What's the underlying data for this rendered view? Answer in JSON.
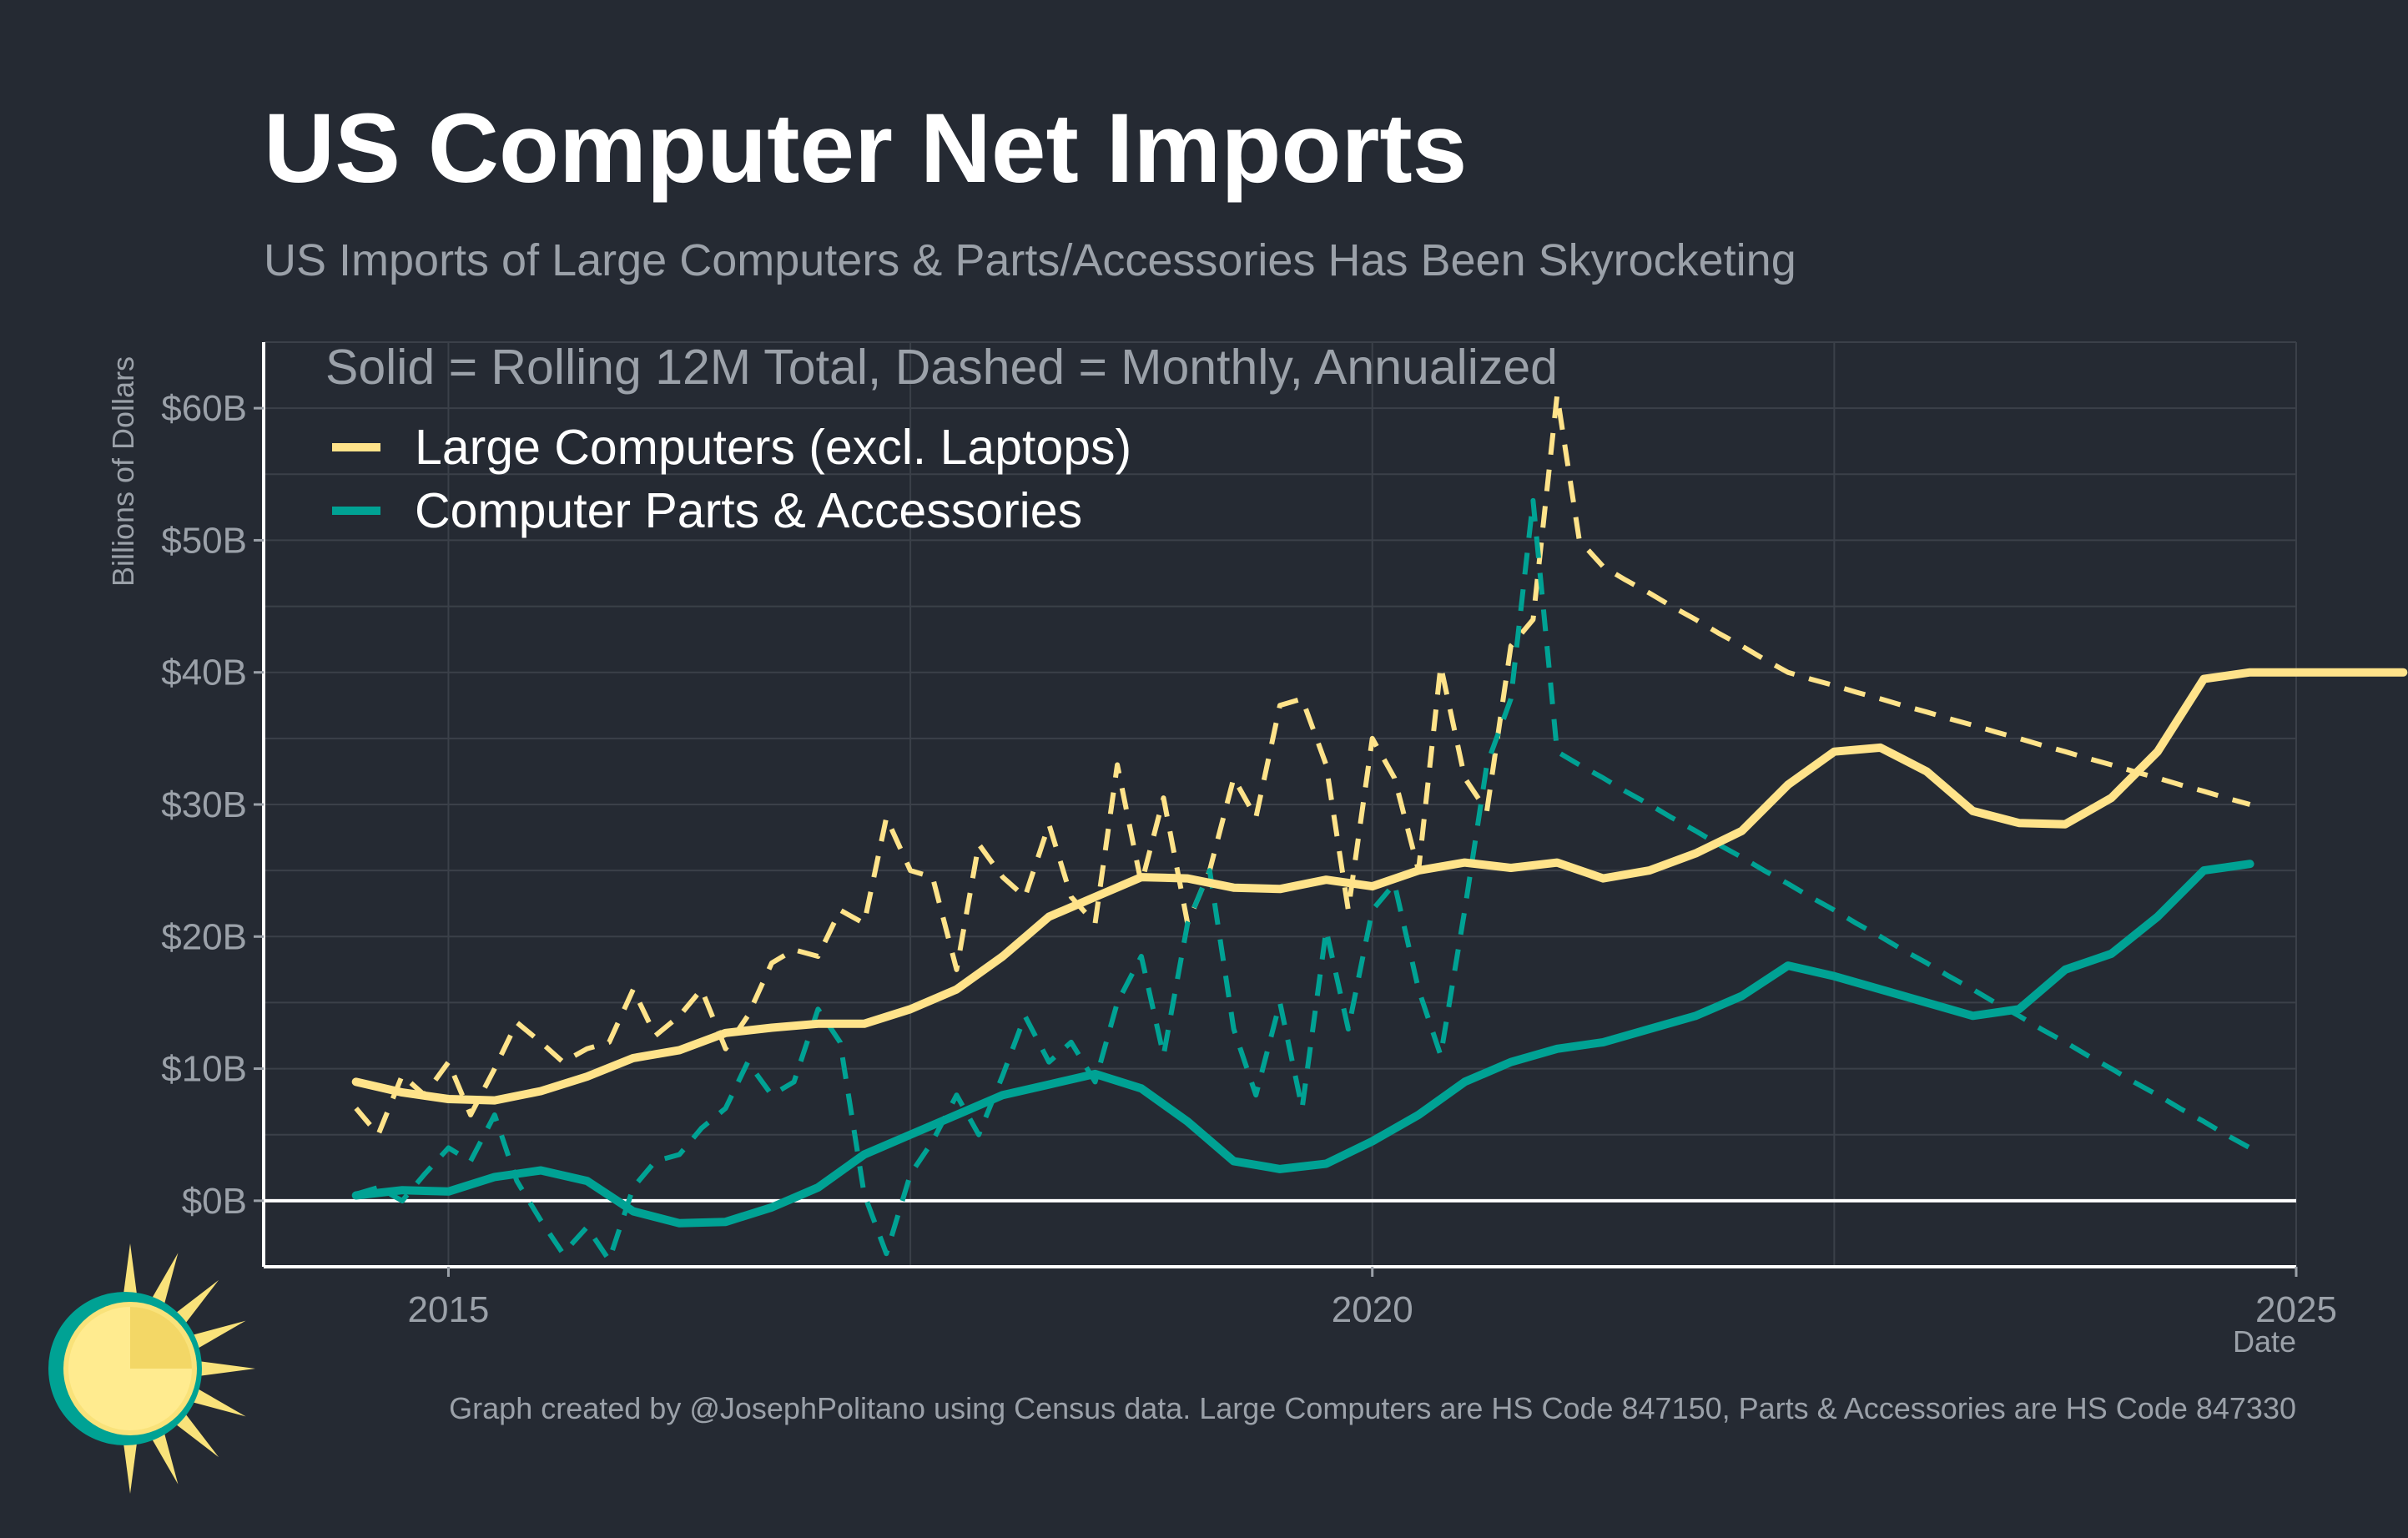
{
  "title": "US Computer Net Imports",
  "subtitle": "US Imports of Large Computers & Parts/Accessories Has Been Skyrocketing",
  "caption": "Graph created by @JosephPolitano using Census data. Large Computers are HS Code 847150, Parts & Accessories are HS Code 847330",
  "colors": {
    "background": "#252a33",
    "grid": "#3b4049",
    "axis": "#ffffff",
    "muted_text": "#9ba1a9",
    "large_computers": "#ffe38a",
    "parts_accessories": "#00a294",
    "logo_sun": "#f9e27a",
    "logo_ring": "#00a294"
  },
  "logo": {
    "icon": "sun-logo-icon"
  },
  "chart_data": {
    "type": "line",
    "note": "Solid = Rolling 12M Total, Dashed = Monthly, Annualized",
    "xlabel": "Date",
    "ylabel": "Billions of Dollars",
    "xlim": [
      2014.0,
      2025.0
    ],
    "ylim": [
      -5,
      65
    ],
    "x_ticks": [
      2015,
      2020,
      2025
    ],
    "x_tick_labels": [
      "2015",
      "2020",
      "2025"
    ],
    "y_ticks": [
      0,
      10,
      20,
      30,
      40,
      50,
      60
    ],
    "y_tick_labels": [
      "$0B",
      "$10B",
      "$20B",
      "$30B",
      "$40B",
      "$50B",
      "$60B"
    ],
    "grid": true,
    "zero_line": true,
    "legend": {
      "placement": "top-left"
    },
    "series": [
      {
        "name": "Large Computers (excl. Laptops)",
        "color": "#ffe38a",
        "style": "solid",
        "x": [
          2014.5,
          2014.75,
          2015.0,
          2015.25,
          2015.5,
          2015.75,
          2016.0,
          2016.25,
          2016.5,
          2016.75,
          2017.0,
          2017.25,
          2017.5,
          2017.75,
          2018.0,
          2018.25,
          2018.5,
          2018.75,
          2019.0,
          2019.25,
          2019.5,
          2019.75,
          2020.0,
          2020.25,
          2020.5,
          2020.75,
          2021.0,
          2021.25,
          2021.5,
          2021.75,
          2022.0,
          2022.25,
          2022.5,
          2022.75,
          2023.0,
          2023.25,
          2023.5,
          2023.75,
          2024.0,
          2024.25,
          2024.5,
          2024.75,
          2025.0,
          2025.25,
          2025.5,
          2025.58
        ],
        "values": [
          9.0,
          8.2,
          7.7,
          7.6,
          8.3,
          9.4,
          10.8,
          11.4,
          12.7,
          13.1,
          13.4,
          13.4,
          14.5,
          16.0,
          18.5,
          21.5,
          23.0,
          24.5,
          24.4,
          23.7,
          23.6,
          24.3,
          23.8,
          25.0,
          25.6,
          25.2,
          25.6,
          24.4,
          25.0,
          26.3,
          28.0,
          31.5,
          34.0,
          34.3,
          32.5,
          29.5,
          28.6,
          28.5,
          30.5,
          34.0,
          39.5,
          40.0,
          40.0,
          40.0,
          40.0,
          40.0
        ]
      },
      {
        "name": "Computer Parts & Accessories",
        "color": "#00a294",
        "style": "solid",
        "x": [
          2014.5,
          2014.75,
          2015.0,
          2015.25,
          2015.5,
          2015.75,
          2016.0,
          2016.25,
          2016.5,
          2016.75,
          2017.0,
          2017.25,
          2017.5,
          2017.75,
          2018.0,
          2018.25,
          2018.5,
          2018.75,
          2019.0,
          2019.25,
          2019.5,
          2019.75,
          2020.0,
          2020.25,
          2020.5,
          2020.75,
          2021.0,
          2021.25,
          2021.5,
          2021.75,
          2022.0,
          2022.25,
          2022.5,
          2022.75,
          2023.0,
          2023.25,
          2023.5,
          2023.75,
          2024.0,
          2024.25,
          2024.5,
          2024.75
        ],
        "values": [
          0.4,
          0.8,
          0.7,
          1.8,
          2.3,
          1.5,
          -0.8,
          -1.7,
          -1.6,
          -0.5,
          1.0,
          3.5,
          5.0,
          6.5,
          8.0,
          8.8,
          9.6,
          8.5,
          6.0,
          3.0,
          2.4,
          2.8,
          4.5,
          6.5,
          9.0,
          10.5,
          11.5,
          12.0,
          13.0,
          14.0,
          15.5,
          17.8,
          17.0,
          16.0,
          15.0,
          14.0,
          14.5,
          17.5,
          18.7,
          21.5,
          25.0,
          25.5
        ]
      }
    ],
    "series_monthly": [
      {
        "name": "Large Computers (excl. Laptops)",
        "style": "dashed",
        "x": [
          2014.5,
          2014.62,
          2014.75,
          2014.87,
          2015.0,
          2015.12,
          2015.25,
          2015.37,
          2015.5,
          2015.62,
          2015.75,
          2015.87,
          2016.0,
          2016.12,
          2016.25,
          2016.37,
          2016.5,
          2016.62,
          2016.75,
          2016.87,
          2017.0,
          2017.12,
          2017.25,
          2017.37,
          2017.5,
          2017.62,
          2017.75,
          2017.87,
          2018.0,
          2018.12,
          2018.25,
          2018.37,
          2018.5,
          2018.62,
          2018.75,
          2018.87,
          2019.0,
          2019.12,
          2019.25,
          2019.37,
          2019.5,
          2019.62,
          2019.75,
          2019.87,
          2020.0,
          2020.12,
          2020.25,
          2020.37,
          2020.5,
          2020.62,
          2020.75,
          2020.87,
          2021.0,
          2021.12,
          2021.25,
          2021.37,
          2021.5,
          2021.62,
          2021.75,
          2021.87,
          2022.0,
          2022.12,
          2022.25,
          2022.37,
          2022.5,
          2022.62,
          2022.75,
          2022.87,
          2023.0,
          2023.12,
          2023.25,
          2023.37,
          2023.5,
          2023.62,
          2023.75,
          2023.87,
          2024.0,
          2024.12,
          2024.25,
          2024.37,
          2024.5,
          2024.62,
          2024.75
        ],
        "values": [
          7.0,
          5.0,
          9.5,
          8.0,
          10.5,
          6.5,
          10.0,
          13.5,
          12.0,
          10.5,
          11.5,
          12.0,
          16.0,
          12.5,
          14.0,
          16.0,
          11.5,
          14.0,
          18.0,
          19.0,
          18.5,
          22.0,
          21.0,
          29.0,
          25.0,
          24.5,
          17.5,
          27.0,
          24.5,
          23.0,
          28.5,
          23.0,
          21.0,
          33.0,
          24.0,
          30.5,
          21.0,
          25.0,
          32.0,
          29.0,
          37.5,
          38.0,
          33.0,
          22.0,
          35.0,
          32.0,
          25.0,
          40.5,
          32.0,
          29.5,
          42.0,
          44.0,
          61.0,
          50.0,
          48.0,
          47.0,
          46.0,
          45.0,
          44.0,
          43.0,
          42.0,
          41.0,
          40.0,
          39.5,
          39.0,
          38.5,
          38.0,
          37.5,
          37.0,
          36.5,
          36.0,
          35.5,
          35.0,
          34.5,
          34.0,
          33.5,
          33.0,
          32.5,
          32.0,
          31.5,
          31.0,
          30.5,
          30.0
        ]
      },
      {
        "name": "Computer Parts & Accessories",
        "style": "dashed",
        "x": [
          2014.5,
          2014.62,
          2014.75,
          2014.87,
          2015.0,
          2015.12,
          2015.25,
          2015.37,
          2015.5,
          2015.62,
          2015.75,
          2015.87,
          2016.0,
          2016.12,
          2016.25,
          2016.37,
          2016.5,
          2016.62,
          2016.75,
          2016.87,
          2017.0,
          2017.12,
          2017.25,
          2017.37,
          2017.5,
          2017.62,
          2017.75,
          2017.87,
          2018.0,
          2018.12,
          2018.25,
          2018.37,
          2018.5,
          2018.62,
          2018.75,
          2018.87,
          2019.0,
          2019.12,
          2019.25,
          2019.37,
          2019.5,
          2019.62,
          2019.75,
          2019.87,
          2020.0,
          2020.12,
          2020.25,
          2020.37,
          2020.5,
          2020.62,
          2020.75,
          2020.87,
          2021.0,
          2021.12,
          2021.25,
          2021.37,
          2021.5,
          2021.62,
          2021.75,
          2021.87,
          2022.0,
          2022.12,
          2022.25,
          2022.37,
          2022.5,
          2022.62,
          2022.75,
          2022.87,
          2023.0,
          2023.12,
          2023.25,
          2023.37,
          2023.5,
          2023.62,
          2023.75,
          2023.87,
          2024.0,
          2024.12,
          2024.25,
          2024.37,
          2024.5,
          2024.62,
          2024.75
        ],
        "values": [
          0.5,
          1.0,
          0.0,
          2.0,
          4.0,
          3.0,
          6.5,
          1.5,
          -1.5,
          -4.0,
          -2.0,
          -4.5,
          1.0,
          3.0,
          3.5,
          5.5,
          7.0,
          10.5,
          8.0,
          9.0,
          14.5,
          12.0,
          0.5,
          -4.0,
          2.0,
          4.5,
          8.0,
          5.0,
          9.5,
          14.0,
          10.5,
          12.0,
          9.0,
          15.0,
          18.5,
          11.0,
          21.0,
          25.0,
          13.0,
          8.0,
          15.0,
          7.0,
          20.5,
          13.0,
          22.0,
          24.0,
          16.0,
          11.0,
          22.0,
          33.0,
          38.0,
          53.0,
          34.0,
          33.0,
          32.0,
          31.0,
          30.0,
          29.0,
          28.0,
          27.0,
          26.0,
          25.0,
          24.0,
          23.0,
          22.0,
          21.0,
          20.0,
          19.0,
          18.0,
          17.0,
          16.0,
          15.0,
          14.0,
          13.0,
          12.0,
          11.0,
          10.0,
          9.0,
          8.0,
          7.0,
          6.0,
          5.0,
          4.0
        ]
      }
    ]
  }
}
